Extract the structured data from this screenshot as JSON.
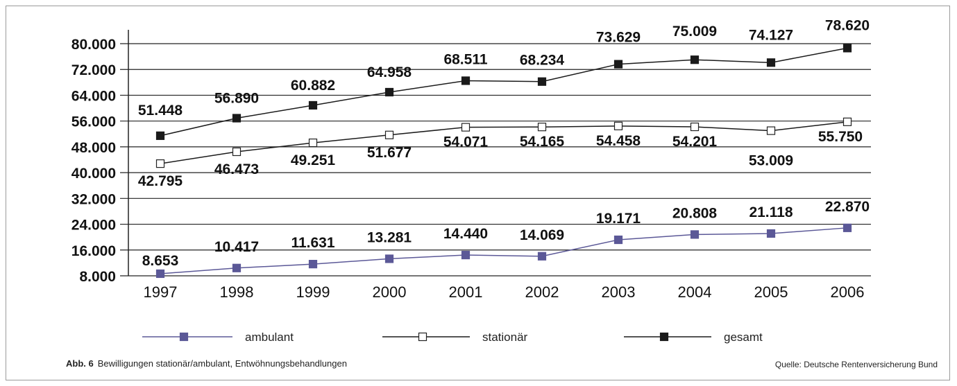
{
  "chart_data": {
    "type": "line",
    "categories": [
      "1997",
      "1998",
      "1999",
      "2000",
      "2001",
      "2002",
      "2003",
      "2004",
      "2005",
      "2006"
    ],
    "y_ticks": [
      "80.000",
      "72.000",
      "64.000",
      "56.000",
      "48.000",
      "40.000",
      "32.000",
      "24.000",
      "16.000",
      "8.000"
    ],
    "ylim": [
      8000,
      80000
    ],
    "grid": "horizontal",
    "legend_position": "bottom",
    "series": [
      {
        "name": "ambulant",
        "marker": "square-filled",
        "color": "#5b5897",
        "line_color": "#5b5897",
        "values": [
          8653,
          10417,
          11631,
          13281,
          14440,
          14069,
          19171,
          20808,
          21118,
          22870
        ],
        "labels": [
          "8.653",
          "10.417",
          "11.631",
          "13.281",
          "14.440",
          "14.069",
          "19.171",
          "20.808",
          "21.118",
          "22.870"
        ]
      },
      {
        "name": "stationär",
        "marker": "square-open",
        "color": "#ffffff",
        "line_color": "#1a1a1a",
        "values": [
          42795,
          46473,
          49251,
          51677,
          54071,
          54165,
          54458,
          54201,
          53009,
          55750
        ],
        "labels": [
          "42.795",
          "46.473",
          "49.251",
          "51.677",
          "54.071",
          "54.165",
          "54.458",
          "54.201",
          "53.009",
          "55.750"
        ]
      },
      {
        "name": "gesamt",
        "marker": "square-filled",
        "color": "#1a1a1a",
        "line_color": "#1a1a1a",
        "values": [
          51448,
          56890,
          60882,
          64958,
          68511,
          68234,
          73629,
          75009,
          74127,
          78620
        ],
        "labels": [
          "51.448",
          "56.890",
          "60.882",
          "64.958",
          "68.511",
          "68.234",
          "73.629",
          "75.009",
          "74.127",
          "78.620"
        ]
      }
    ]
  },
  "caption": {
    "label": "Abb. 6",
    "text": "Bewilligungen stationär/ambulant, Entwöhnungsbehandlungen"
  },
  "source": "Quelle: Deutsche Rentenversicherung Bund"
}
